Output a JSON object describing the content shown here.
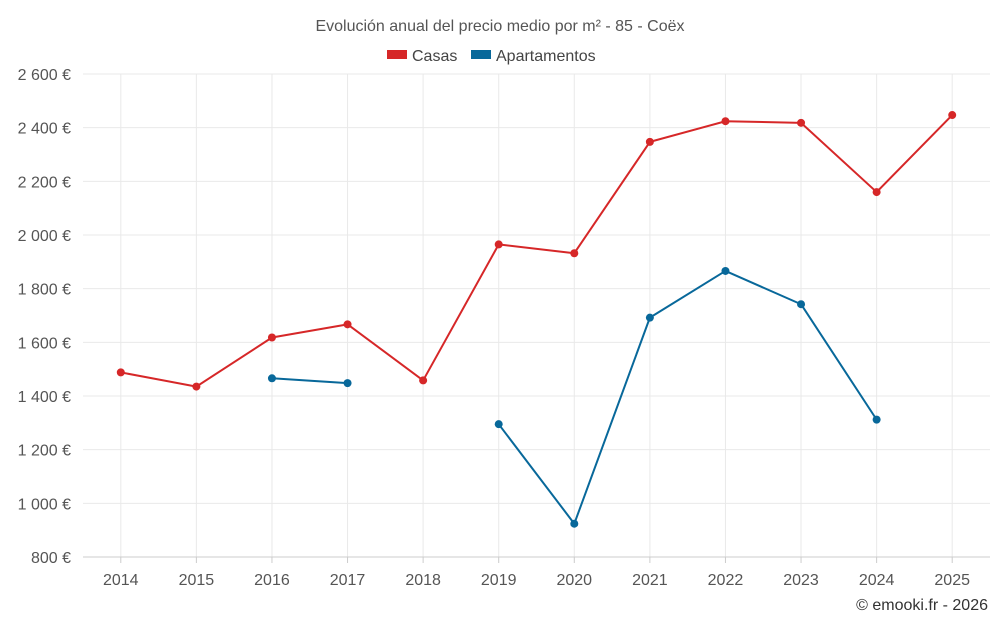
{
  "chart_data": {
    "type": "line",
    "title": "Evolución anual del precio medio por m² - 85 - Coëx",
    "categories": [
      "2014",
      "2015",
      "2016",
      "2017",
      "2018",
      "2019",
      "2020",
      "2021",
      "2022",
      "2023",
      "2024",
      "2025"
    ],
    "series": [
      {
        "name": "Casas",
        "color": "#d62728",
        "values": [
          1488,
          1435,
          1618,
          1667,
          1458,
          1965,
          1932,
          2347,
          2424,
          2418,
          2160,
          2447
        ]
      },
      {
        "name": "Apartamentos",
        "color": "#08689a",
        "values": [
          null,
          null,
          1466,
          1448,
          null,
          1295,
          924,
          1692,
          1866,
          1742,
          1312,
          null
        ]
      }
    ],
    "ylim": [
      800,
      2600
    ],
    "yticks": [
      800,
      1000,
      1200,
      1400,
      1600,
      1800,
      2000,
      2200,
      2400,
      2600
    ],
    "ytick_labels": [
      "800 €",
      "1 000 €",
      "1 200 €",
      "1 400 €",
      "1 600 €",
      "1 800 €",
      "2 000 €",
      "2 200 €",
      "2 400 €",
      "2 600 €"
    ],
    "grid": true,
    "legend_position": "top-center",
    "xlabel": "",
    "ylabel": ""
  },
  "credit": "© emooki.fr - 2026"
}
